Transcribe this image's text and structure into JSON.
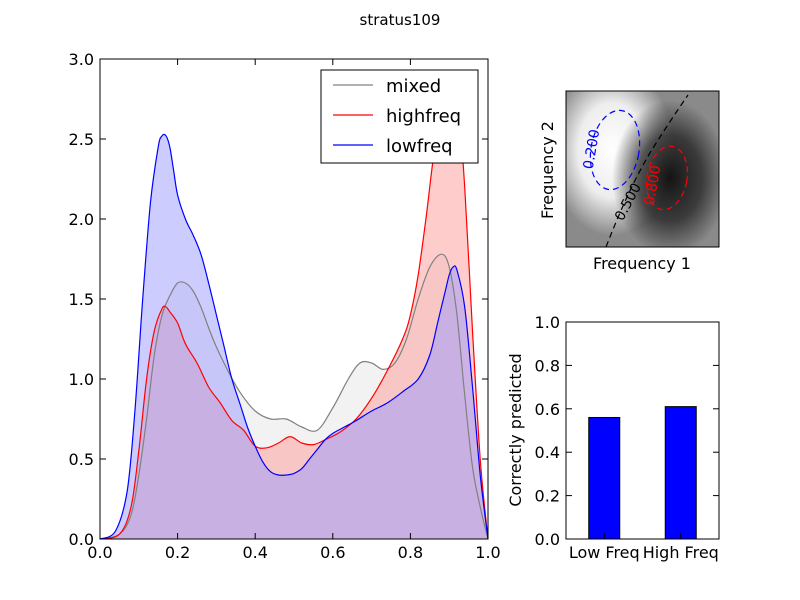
{
  "title": "stratus109",
  "chart_data": [
    {
      "type": "area",
      "id": "density",
      "xlim": [
        0.0,
        1.0
      ],
      "ylim": [
        0.0,
        3.0
      ],
      "xticks": [
        "0.0",
        "0.2",
        "0.4",
        "0.6",
        "0.8",
        "1.0"
      ],
      "yticks": [
        "0.0",
        "0.5",
        "1.0",
        "1.5",
        "2.0",
        "2.5",
        "3.0"
      ],
      "series": [
        {
          "name": "mixed",
          "color": "#808080",
          "fill": "#e6e6e6",
          "x": [
            0.0,
            0.05,
            0.08,
            0.1,
            0.12,
            0.14,
            0.16,
            0.18,
            0.2,
            0.22,
            0.24,
            0.26,
            0.28,
            0.3,
            0.33,
            0.36,
            0.4,
            0.44,
            0.48,
            0.52,
            0.56,
            0.6,
            0.64,
            0.67,
            0.7,
            0.73,
            0.76,
            0.79,
            0.82,
            0.85,
            0.88,
            0.9,
            0.92,
            0.94,
            0.96,
            0.98,
            1.0
          ],
          "values": [
            0.0,
            0.03,
            0.15,
            0.4,
            0.75,
            1.15,
            1.4,
            1.52,
            1.6,
            1.6,
            1.55,
            1.45,
            1.32,
            1.2,
            1.05,
            0.92,
            0.8,
            0.75,
            0.75,
            0.7,
            0.68,
            0.82,
            1.0,
            1.1,
            1.1,
            1.06,
            1.1,
            1.25,
            1.5,
            1.7,
            1.78,
            1.7,
            1.4,
            0.9,
            0.45,
            0.2,
            0.0
          ]
        },
        {
          "name": "highfreq",
          "color": "#ff0000",
          "fill": "#ff9999",
          "x": [
            0.0,
            0.05,
            0.08,
            0.1,
            0.12,
            0.14,
            0.16,
            0.17,
            0.18,
            0.2,
            0.22,
            0.25,
            0.28,
            0.31,
            0.34,
            0.37,
            0.4,
            0.43,
            0.46,
            0.49,
            0.52,
            0.55,
            0.58,
            0.62,
            0.66,
            0.7,
            0.74,
            0.78,
            0.8,
            0.82,
            0.84,
            0.86,
            0.88,
            0.9,
            0.92,
            0.94,
            0.96,
            0.98,
            1.0
          ],
          "values": [
            0.0,
            0.03,
            0.2,
            0.55,
            1.0,
            1.3,
            1.44,
            1.45,
            1.42,
            1.35,
            1.22,
            1.1,
            0.95,
            0.85,
            0.74,
            0.68,
            0.58,
            0.57,
            0.6,
            0.64,
            0.6,
            0.59,
            0.62,
            0.67,
            0.75,
            0.88,
            1.05,
            1.25,
            1.4,
            1.65,
            2.0,
            2.4,
            2.7,
            2.9,
            2.8,
            2.2,
            1.3,
            0.5,
            0.0
          ]
        },
        {
          "name": "lowfreq",
          "color": "#0000ff",
          "fill": "#9999ff",
          "x": [
            0.0,
            0.04,
            0.07,
            0.09,
            0.11,
            0.13,
            0.15,
            0.16,
            0.17,
            0.18,
            0.19,
            0.2,
            0.22,
            0.24,
            0.26,
            0.28,
            0.3,
            0.32,
            0.34,
            0.36,
            0.38,
            0.4,
            0.42,
            0.44,
            0.46,
            0.48,
            0.5,
            0.52,
            0.54,
            0.56,
            0.58,
            0.6,
            0.63,
            0.66,
            0.7,
            0.74,
            0.78,
            0.82,
            0.85,
            0.87,
            0.89,
            0.9,
            0.91,
            0.92,
            0.94,
            0.96,
            0.98,
            1.0
          ],
          "values": [
            0.0,
            0.05,
            0.3,
            0.8,
            1.5,
            2.1,
            2.45,
            2.52,
            2.52,
            2.45,
            2.3,
            2.15,
            2.0,
            1.9,
            1.78,
            1.6,
            1.4,
            1.2,
            1.0,
            0.85,
            0.7,
            0.58,
            0.48,
            0.42,
            0.4,
            0.4,
            0.41,
            0.44,
            0.5,
            0.56,
            0.62,
            0.66,
            0.7,
            0.74,
            0.8,
            0.85,
            0.92,
            1.0,
            1.15,
            1.35,
            1.55,
            1.65,
            1.7,
            1.68,
            1.45,
            0.95,
            0.4,
            0.0
          ]
        }
      ],
      "legend": {
        "placement": "top-right",
        "entries": [
          "mixed",
          "highfreq",
          "lowfreq"
        ]
      }
    },
    {
      "type": "heatmap",
      "id": "frequency-map",
      "xlabel": "Frequency 1",
      "ylabel": "Frequency 2",
      "contours": [
        {
          "level": "0.200",
          "color": "#0000ff",
          "style": "dashed"
        },
        {
          "level": "0.500",
          "color": "#000000",
          "style": "dashed"
        },
        {
          "level": "0.800",
          "color": "#ff0000",
          "style": "dashed"
        }
      ]
    },
    {
      "type": "bar",
      "id": "accuracy",
      "categories": [
        "Low Freq",
        "High Freq"
      ],
      "values": [
        0.56,
        0.61
      ],
      "color": "#0000ff",
      "ylabel": "Correctly predicted",
      "ylim": [
        0.0,
        1.0
      ],
      "yticks": [
        "0.0",
        "0.2",
        "0.4",
        "0.6",
        "0.8",
        "1.0"
      ]
    }
  ]
}
